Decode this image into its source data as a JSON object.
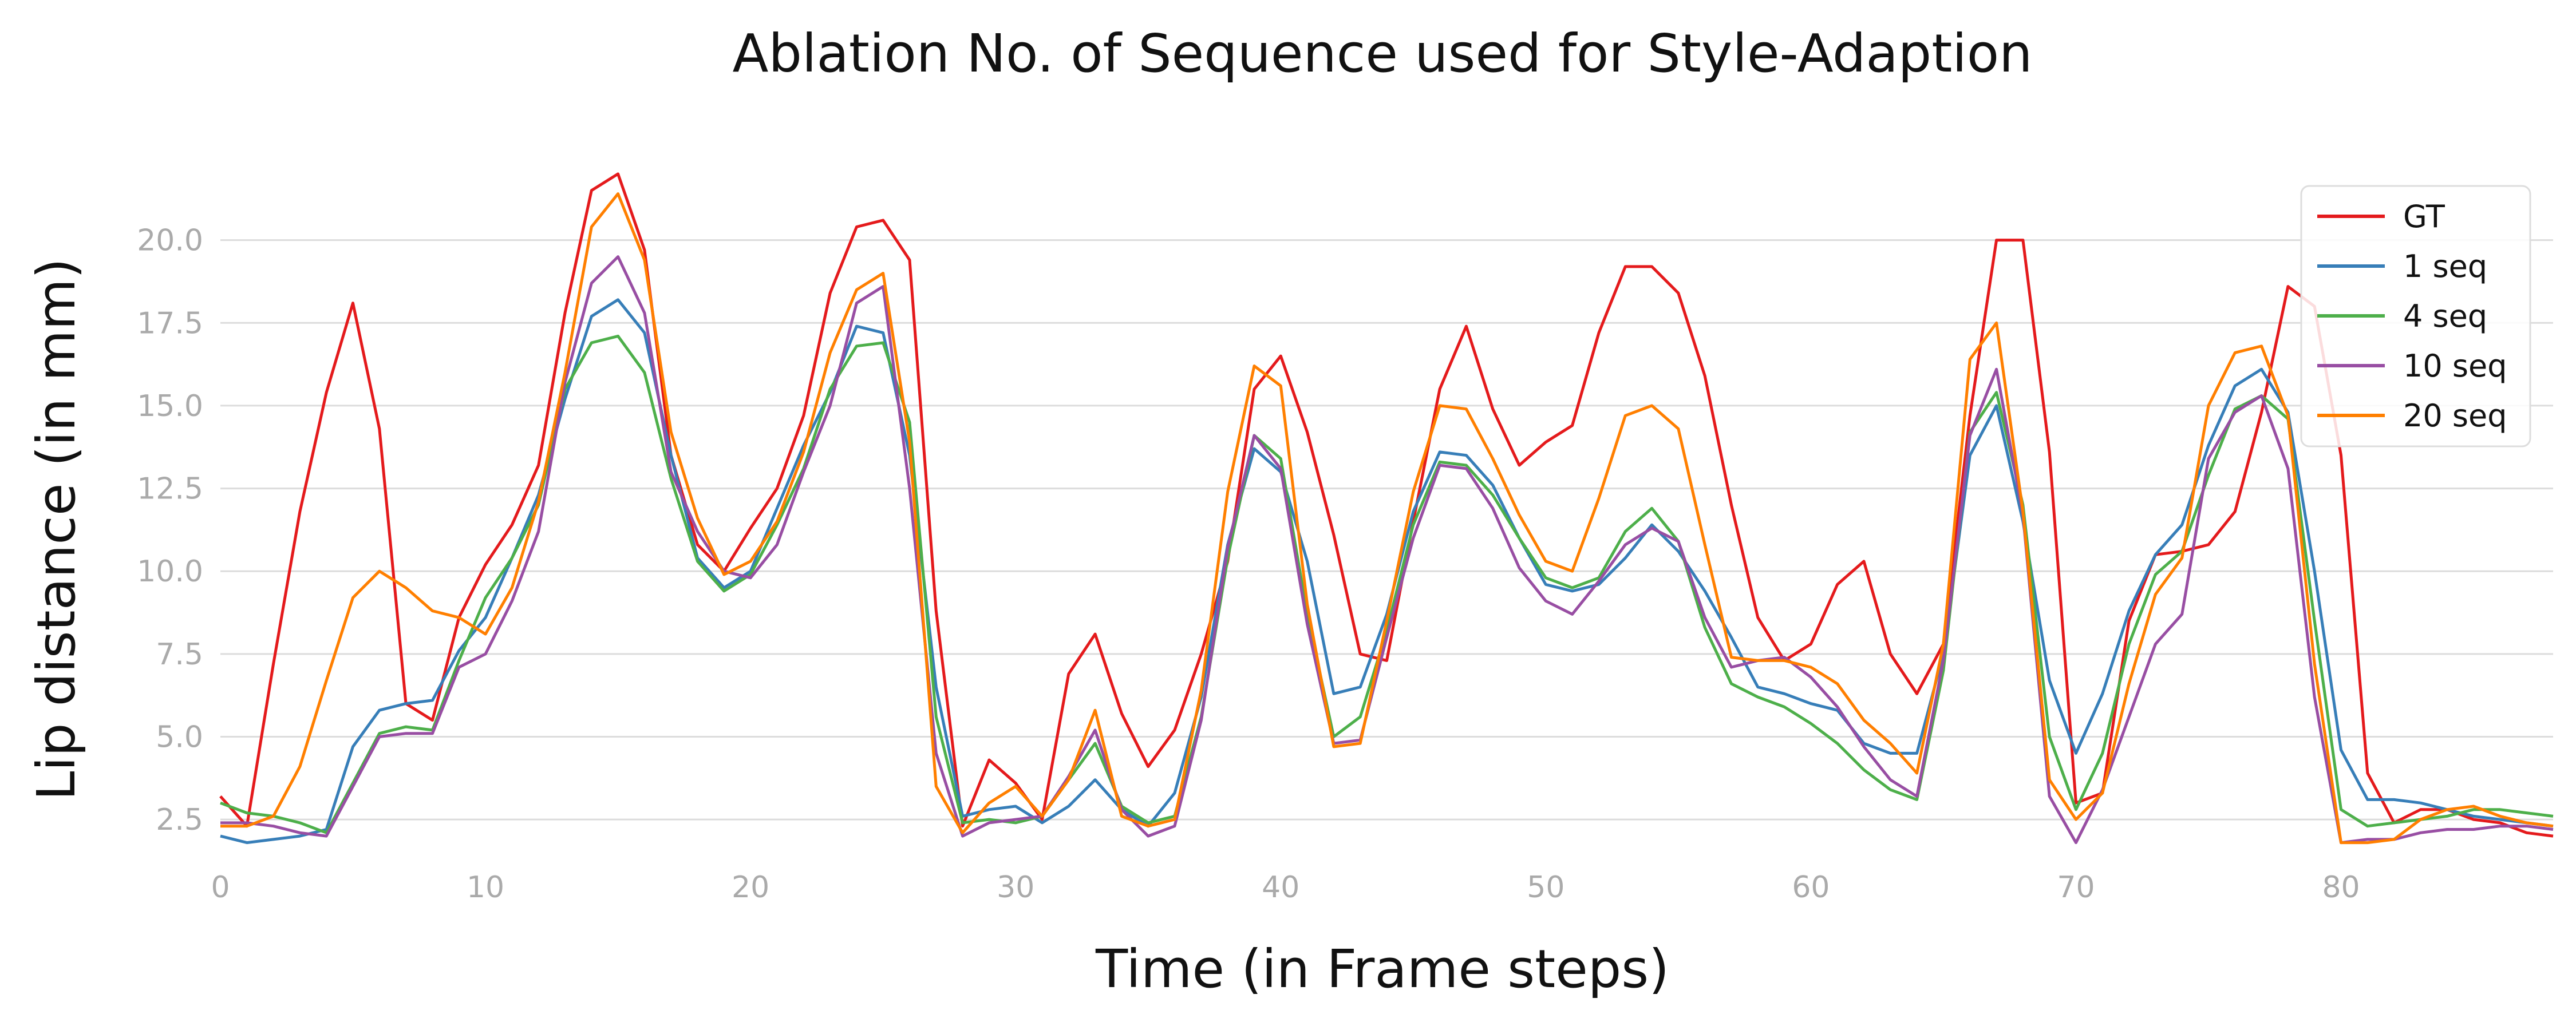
{
  "chart_data": {
    "type": "line",
    "title": "Ablation No. of Sequence used for Style-Adaption",
    "xlabel": "Time (in Frame steps)",
    "ylabel": "Lip distance (in mm)",
    "xlim": [
      0,
      88
    ],
    "ylim": [
      1.5,
      22.5
    ],
    "xticks": [
      0,
      10,
      20,
      30,
      40,
      50,
      60,
      70,
      80
    ],
    "xtick_labels": [
      "0",
      "10",
      "20",
      "30",
      "40",
      "50",
      "60",
      "70",
      "80"
    ],
    "yticks": [
      2.5,
      5.0,
      7.5,
      10.0,
      12.5,
      15.0,
      17.5,
      20.0
    ],
    "ytick_labels": [
      "2.5",
      "5.0",
      "7.5",
      "10.0",
      "12.5",
      "15.0",
      "17.5",
      "20.0"
    ],
    "grid": "horizontal",
    "legend_position": "top-right",
    "series": [
      {
        "name": "GT",
        "color": "#e41a1c",
        "values": [
          3.2,
          2.3,
          7.2,
          11.8,
          15.4,
          18.1,
          14.3,
          6.0,
          5.5,
          8.6,
          10.2,
          11.4,
          13.2,
          17.8,
          21.5,
          22.0,
          19.7,
          13.5,
          10.8,
          10.0,
          11.3,
          12.5,
          14.7,
          18.4,
          20.4,
          20.6,
          19.4,
          8.8,
          2.3,
          4.3,
          3.6,
          2.5,
          6.9,
          8.1,
          5.7,
          4.1,
          5.2,
          7.5,
          10.3,
          15.5,
          16.5,
          14.2,
          11.1,
          7.5,
          7.3,
          11.5,
          15.5,
          17.4,
          14.9,
          13.2,
          13.9,
          14.4,
          17.2,
          19.2,
          19.2,
          18.4,
          15.9,
          12.0,
          8.6,
          7.3,
          7.8,
          9.6,
          10.3,
          7.5,
          6.3,
          7.8,
          14.7,
          20.0,
          20.0,
          13.6,
          3.0,
          3.3,
          8.5,
          10.5,
          10.6,
          10.8,
          11.8,
          14.8,
          18.6,
          18.0,
          13.5,
          3.9,
          2.4,
          2.8,
          2.8,
          2.5,
          2.4,
          2.1,
          2.0
        ]
      },
      {
        "name": "1 seq",
        "color": "#377eb8",
        "values": [
          2.0,
          1.8,
          1.9,
          2.0,
          2.2,
          4.7,
          5.8,
          6.0,
          6.1,
          7.6,
          8.6,
          10.4,
          12.3,
          15.2,
          17.7,
          18.2,
          17.2,
          13.5,
          10.4,
          9.5,
          10.0,
          11.9,
          13.8,
          15.4,
          17.4,
          17.2,
          13.5,
          6.5,
          2.6,
          2.8,
          2.9,
          2.4,
          2.9,
          3.7,
          2.8,
          2.3,
          3.3,
          6.2,
          10.8,
          13.7,
          13.0,
          10.3,
          6.3,
          6.5,
          8.7,
          11.8,
          13.6,
          13.5,
          12.6,
          11.0,
          9.6,
          9.4,
          9.6,
          10.4,
          11.4,
          10.6,
          9.4,
          8.0,
          6.5,
          6.3,
          6.0,
          5.8,
          4.8,
          4.5,
          4.5,
          7.5,
          13.5,
          15.0,
          11.5,
          6.7,
          4.5,
          6.3,
          8.8,
          10.5,
          11.4,
          13.8,
          15.6,
          16.1,
          14.8,
          10.0,
          4.6,
          3.1,
          3.1,
          3.0,
          2.8,
          2.6,
          2.5,
          2.4,
          2.3
        ]
      },
      {
        "name": "4 seq",
        "color": "#4daf4a",
        "values": [
          3.0,
          2.7,
          2.6,
          2.4,
          2.1,
          3.6,
          5.1,
          5.3,
          5.2,
          7.3,
          9.2,
          10.4,
          12.0,
          15.5,
          16.9,
          17.1,
          16.0,
          12.8,
          10.3,
          9.4,
          9.9,
          11.4,
          13.1,
          15.5,
          16.8,
          16.9,
          14.5,
          5.6,
          2.4,
          2.5,
          2.4,
          2.6,
          3.7,
          4.8,
          2.9,
          2.4,
          2.6,
          5.6,
          10.4,
          14.1,
          13.4,
          8.7,
          5.0,
          5.6,
          8.2,
          11.4,
          13.3,
          13.2,
          12.3,
          11.0,
          9.8,
          9.5,
          9.8,
          11.2,
          11.9,
          10.9,
          8.3,
          6.6,
          6.2,
          5.9,
          5.4,
          4.8,
          4.0,
          3.4,
          3.1,
          7.0,
          14.2,
          15.4,
          12.0,
          5.0,
          2.8,
          4.5,
          7.8,
          9.9,
          10.6,
          12.9,
          14.9,
          15.3,
          14.6,
          8.5,
          2.8,
          2.3,
          2.4,
          2.5,
          2.6,
          2.8,
          2.8,
          2.7,
          2.6
        ]
      },
      {
        "name": "10 seq",
        "color": "#984ea3",
        "values": [
          2.4,
          2.4,
          2.3,
          2.1,
          2.0,
          3.5,
          5.0,
          5.1,
          5.1,
          7.1,
          7.5,
          9.1,
          11.2,
          15.7,
          18.7,
          19.5,
          17.8,
          13.0,
          11.2,
          10.0,
          9.8,
          10.8,
          13.0,
          15.0,
          18.1,
          18.6,
          12.5,
          4.5,
          2.0,
          2.4,
          2.5,
          2.6,
          3.8,
          5.2,
          2.8,
          2.0,
          2.3,
          5.5,
          10.7,
          14.1,
          13.1,
          8.4,
          4.8,
          4.9,
          8.0,
          11.0,
          13.2,
          13.1,
          11.9,
          10.1,
          9.1,
          8.7,
          9.7,
          10.8,
          11.3,
          10.9,
          8.6,
          7.1,
          7.3,
          7.4,
          6.8,
          5.9,
          4.7,
          3.7,
          3.2,
          7.3,
          14.1,
          16.1,
          11.7,
          3.2,
          1.8,
          3.4,
          5.6,
          7.8,
          8.7,
          13.4,
          14.8,
          15.3,
          13.1,
          6.2,
          1.8,
          1.9,
          1.9,
          2.1,
          2.2,
          2.2,
          2.3,
          2.3,
          2.2
        ]
      },
      {
        "name": "20 seq",
        "color": "#ff7f00",
        "values": [
          2.3,
          2.3,
          2.6,
          4.1,
          6.7,
          9.2,
          10.0,
          9.5,
          8.8,
          8.6,
          8.1,
          9.5,
          12.1,
          16.0,
          20.4,
          21.4,
          19.4,
          14.2,
          11.6,
          9.9,
          10.3,
          11.5,
          13.6,
          16.6,
          18.5,
          19.0,
          13.9,
          3.5,
          2.1,
          3.0,
          3.5,
          2.6,
          3.7,
          5.8,
          2.6,
          2.3,
          2.5,
          6.4,
          12.4,
          16.2,
          15.6,
          9.0,
          4.7,
          4.8,
          8.5,
          12.4,
          15.0,
          14.9,
          13.4,
          11.7,
          10.3,
          10.0,
          12.2,
          14.7,
          15.0,
          14.3,
          10.8,
          7.4,
          7.3,
          7.3,
          7.1,
          6.6,
          5.5,
          4.8,
          3.9,
          7.8,
          16.4,
          17.5,
          11.8,
          3.7,
          2.5,
          3.3,
          6.6,
          9.3,
          10.4,
          15.0,
          16.6,
          16.8,
          14.7,
          7.2,
          1.8,
          1.8,
          1.9,
          2.5,
          2.8,
          2.9,
          2.6,
          2.4,
          2.3
        ]
      }
    ]
  }
}
